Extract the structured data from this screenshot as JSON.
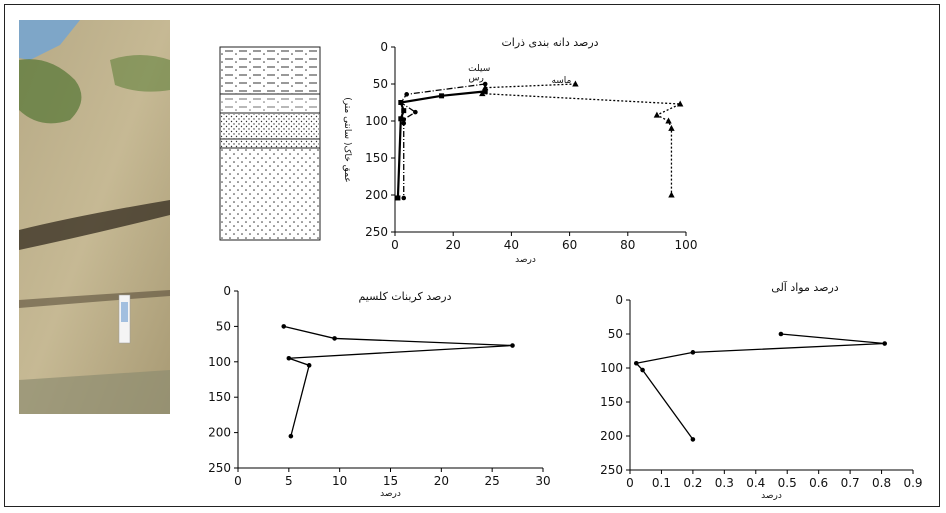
{
  "figure": {
    "photo": "soil-profile-photo",
    "colors": {
      "line": "#000000",
      "frame": "#222222",
      "sand": "#bdb089",
      "vegetation": "#5b7a3a",
      "sky": "#7ea6c8"
    }
  },
  "chart_data": [
    {
      "type": "line",
      "title": "درصد دانه بندی ذرات",
      "xlabel": "درصد",
      "ylabel": "عمق خاک( سانتی متر)",
      "xlim": [
        0,
        100
      ],
      "ylim": [
        250,
        0
      ],
      "xticks": [
        0,
        20,
        40,
        60,
        80,
        100
      ],
      "yticks": [
        0,
        50,
        100,
        150,
        200,
        250
      ],
      "series": [
        {
          "name": "ماسه",
          "marker": "triangle",
          "style": "dotted",
          "x": [
            62,
            31,
            30,
            98,
            90,
            94,
            95,
            95
          ],
          "y": [
            50,
            55,
            63,
            77,
            92,
            100,
            110,
            200
          ]
        },
        {
          "name": "سیلت",
          "marker": "circle",
          "style": "dashdot",
          "x": [
            31,
            4,
            2,
            7,
            3,
            3,
            3
          ],
          "y": [
            50,
            64,
            75,
            88,
            98,
            103,
            204
          ]
        },
        {
          "name": "رس",
          "marker": "square",
          "style": "solid",
          "x": [
            31,
            16,
            2,
            3,
            2,
            1
          ],
          "y": [
            60,
            66,
            75,
            86,
            97,
            204
          ]
        }
      ]
    },
    {
      "type": "line",
      "title": "درصد کربنات کلسیم",
      "xlabel": "درصد",
      "xlim": [
        0,
        30
      ],
      "ylim": [
        250,
        0
      ],
      "xticks": [
        0,
        5,
        10,
        15,
        20,
        25,
        30
      ],
      "yticks": [
        0,
        50,
        100,
        150,
        200,
        250
      ],
      "series": [
        {
          "marker": "circle",
          "style": "solid",
          "x": [
            4.5,
            9.5,
            27,
            5,
            7,
            5.2
          ],
          "y": [
            50,
            67,
            77,
            95,
            105,
            205
          ]
        }
      ]
    },
    {
      "type": "line",
      "title": "درصد مواد آلی",
      "xlabel": "درصد",
      "xlim": [
        0,
        0.9
      ],
      "ylim": [
        250,
        0
      ],
      "xticks": [
        0,
        0.1,
        0.2,
        0.3,
        0.4,
        0.5,
        0.6,
        0.7,
        0.8,
        0.9
      ],
      "yticks": [
        0,
        50,
        100,
        150,
        200,
        250
      ],
      "series": [
        {
          "marker": "circle",
          "style": "solid",
          "x": [
            0.48,
            0.81,
            0.2,
            0.02,
            0.04,
            0.2
          ],
          "y": [
            50,
            64,
            77,
            93,
            103,
            205
          ]
        }
      ]
    }
  ]
}
